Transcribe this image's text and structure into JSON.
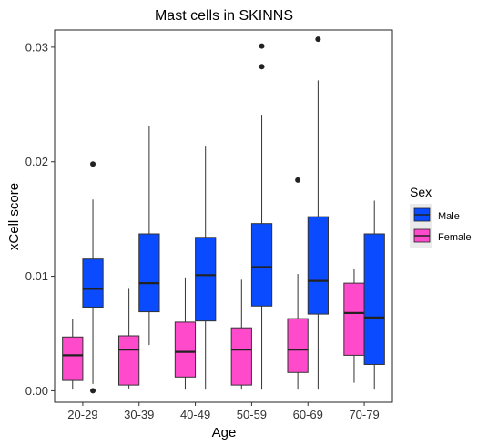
{
  "chart_data": {
    "type": "boxplot",
    "title": "Mast cells in SKINNS",
    "xlabel": "Age",
    "ylabel": "xCell score",
    "categories": [
      "20-29",
      "30-39",
      "40-49",
      "50-59",
      "60-69",
      "70-79"
    ],
    "ylim": [
      -0.001,
      0.0315
    ],
    "yticks": [
      {
        "value": 0.0,
        "label": "0.00"
      },
      {
        "value": 0.01,
        "label": "0.01"
      },
      {
        "value": 0.02,
        "label": "0.02"
      },
      {
        "value": 0.03,
        "label": "0.03"
      }
    ],
    "legend": {
      "title": "Sex",
      "position": "right"
    },
    "grid": false,
    "series": [
      {
        "name": "Female",
        "color": "#FF4ACB",
        "boxes": [
          {
            "min": 0.0001,
            "q1": 0.0009,
            "median": 0.0031,
            "q3": 0.0047,
            "max": 0.0063,
            "outliers": []
          },
          {
            "min": 0.0002,
            "q1": 0.0005,
            "median": 0.0036,
            "q3": 0.0048,
            "max": 0.0089,
            "outliers": []
          },
          {
            "min": 0.0001,
            "q1": 0.0012,
            "median": 0.0034,
            "q3": 0.006,
            "max": 0.0099,
            "outliers": []
          },
          {
            "min": 0.0001,
            "q1": 0.0005,
            "median": 0.0036,
            "q3": 0.0055,
            "max": 0.0097,
            "outliers": []
          },
          {
            "min": 0.0001,
            "q1": 0.0016,
            "median": 0.0036,
            "q3": 0.0063,
            "max": 0.0102,
            "outliers": [
              0.0184
            ]
          },
          {
            "min": 0.0007,
            "q1": 0.0031,
            "median": 0.0068,
            "q3": 0.0094,
            "max": 0.0106,
            "outliers": []
          }
        ]
      },
      {
        "name": "Male",
        "color": "#0A4BFF",
        "boxes": [
          {
            "min": 0.0006,
            "q1": 0.0073,
            "median": 0.0089,
            "q3": 0.0115,
            "max": 0.0167,
            "outliers": [
              0.0198,
              0.0
            ]
          },
          {
            "min": 0.004,
            "q1": 0.0069,
            "median": 0.0094,
            "q3": 0.0137,
            "max": 0.0231,
            "outliers": []
          },
          {
            "min": 0.0001,
            "q1": 0.0061,
            "median": 0.0101,
            "q3": 0.0134,
            "max": 0.0214,
            "outliers": []
          },
          {
            "min": 0.0001,
            "q1": 0.0074,
            "median": 0.0108,
            "q3": 0.0146,
            "max": 0.0241,
            "outliers": [
              0.0283,
              0.0301
            ]
          },
          {
            "min": 0.0001,
            "q1": 0.0067,
            "median": 0.0096,
            "q3": 0.0152,
            "max": 0.0271,
            "outliers": [
              0.0307
            ]
          },
          {
            "min": 0.0001,
            "q1": 0.0023,
            "median": 0.0064,
            "q3": 0.0137,
            "max": 0.0166,
            "outliers": []
          }
        ]
      }
    ]
  }
}
